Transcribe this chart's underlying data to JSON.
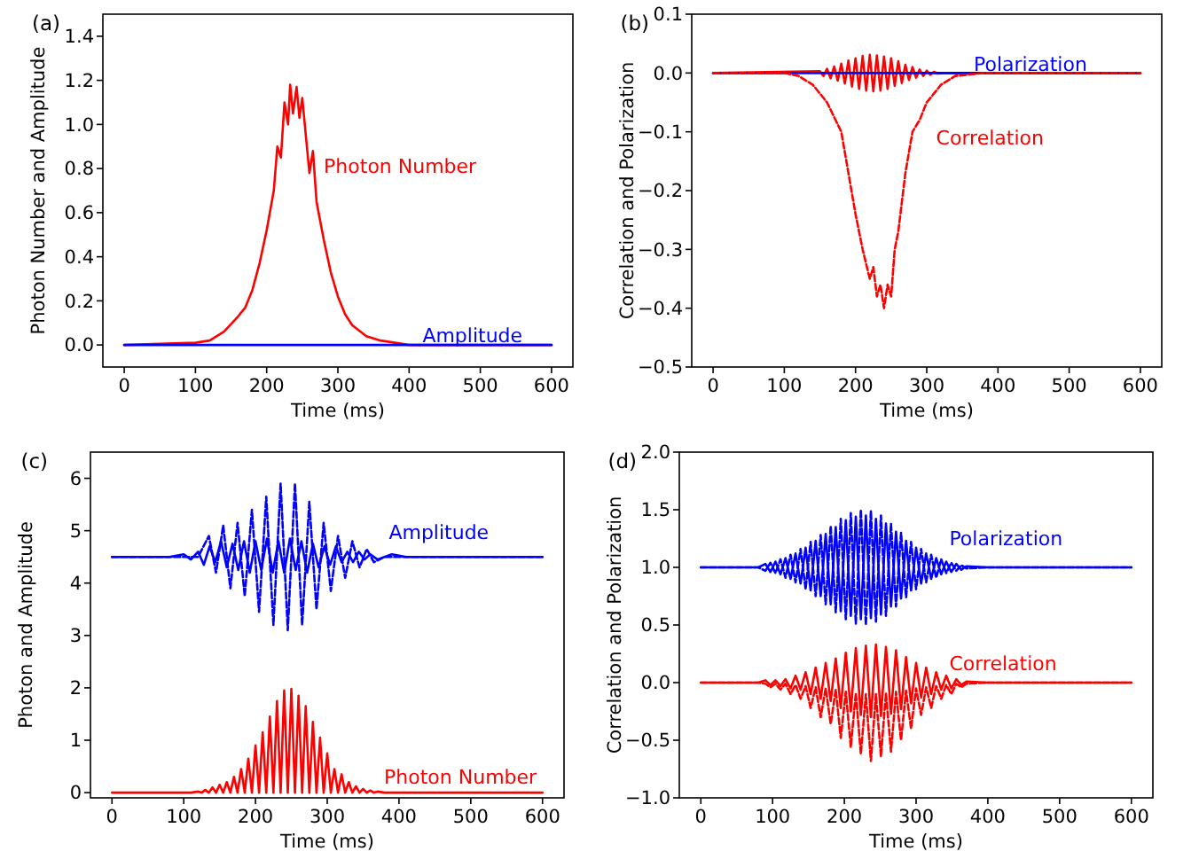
{
  "chart_data": [
    {
      "type": "line",
      "title": "(a)",
      "xlabel": "Time (ms)",
      "ylabel": "Photon Number and Amplitude",
      "xlim": [
        -30,
        630
      ],
      "xticks": [
        0,
        100,
        200,
        300,
        400,
        500,
        600
      ],
      "ylim": [
        -0.1,
        1.5
      ],
      "yticks": [
        {
          "value": 0,
          "label": "0.0"
        },
        {
          "value": 0.2,
          "label": "0.2"
        },
        {
          "value": 0.4,
          "label": "0.4"
        },
        {
          "value": 0.6,
          "label": "0.6"
        },
        {
          "value": 0.8,
          "label": "0.8"
        },
        {
          "value": 1,
          "label": "1.0"
        },
        {
          "value": 1.2,
          "label": "1.2"
        },
        {
          "value": 1.4,
          "label": "1.4"
        }
      ],
      "series": [
        {
          "name": "Photon Number",
          "color": "#ff0000",
          "line_style": "solid",
          "x": [
            0,
            100,
            120,
            140,
            160,
            170,
            180,
            190,
            200,
            210,
            215,
            220,
            225,
            230,
            233,
            237,
            242,
            246,
            250,
            255,
            260,
            265,
            270,
            280,
            290,
            300,
            310,
            320,
            340,
            360,
            380,
            400,
            600
          ],
          "values": [
            0,
            0.01,
            0.02,
            0.06,
            0.13,
            0.17,
            0.25,
            0.37,
            0.52,
            0.7,
            0.9,
            0.85,
            1.1,
            1.0,
            1.18,
            1.05,
            1.17,
            1.03,
            1.12,
            0.95,
            0.78,
            0.88,
            0.65,
            0.48,
            0.33,
            0.22,
            0.14,
            0.09,
            0.04,
            0.02,
            0.01,
            0,
            0
          ]
        },
        {
          "name": "Amplitude",
          "color": "#0000ff",
          "line_style": "solid",
          "x": [
            0,
            600
          ],
          "values": [
            0,
            0
          ]
        }
      ]
    },
    {
      "type": "line",
      "title": "(b)",
      "xlabel": "Time (ms)",
      "ylabel": "Correlation and Polarization",
      "xlim": [
        -30,
        630
      ],
      "xticks": [
        0,
        100,
        200,
        300,
        400,
        500,
        600
      ],
      "ylim": [
        -0.5,
        0.1
      ],
      "yticks": [
        {
          "value": -0.5,
          "label": "−0.5"
        },
        {
          "value": -0.4,
          "label": "−0.4"
        },
        {
          "value": -0.3,
          "label": "−0.3"
        },
        {
          "value": -0.2,
          "label": "−0.2"
        },
        {
          "value": -0.1,
          "label": "−0.1"
        },
        {
          "value": 0,
          "label": "0.0"
        },
        {
          "value": 0.1,
          "label": "0.1"
        }
      ],
      "series": [
        {
          "color": "#ff0000",
          "line_style": "solid",
          "x": [
            0,
            150,
            155,
            160,
            165,
            170,
            175,
            180,
            185,
            190,
            195,
            200,
            205,
            210,
            215,
            220,
            225,
            230,
            235,
            240,
            245,
            250,
            255,
            260,
            265,
            270,
            275,
            280,
            285,
            290,
            295,
            300,
            305,
            310,
            315,
            330,
            600
          ],
          "values": [
            0,
            0.003,
            -0.005,
            0.007,
            -0.009,
            0.011,
            -0.013,
            0.016,
            -0.018,
            0.021,
            -0.023,
            0.025,
            -0.027,
            0.029,
            -0.03,
            0.031,
            -0.031,
            0.03,
            -0.03,
            0.028,
            -0.027,
            0.025,
            -0.022,
            0.02,
            -0.017,
            0.014,
            -0.012,
            0.01,
            -0.008,
            0.006,
            -0.005,
            0.004,
            -0.003,
            0.002,
            -0.001,
            0,
            0
          ]
        },
        {
          "name": "Correlation",
          "color": "#ff0000",
          "line_style": "dashed",
          "x": [
            0,
            100,
            120,
            140,
            160,
            180,
            190,
            200,
            210,
            220,
            225,
            230,
            235,
            240,
            245,
            250,
            255,
            260,
            270,
            280,
            290,
            300,
            320,
            340,
            380,
            600
          ],
          "values": [
            0,
            0,
            -0.005,
            -0.02,
            -0.05,
            -0.1,
            -0.17,
            -0.24,
            -0.3,
            -0.35,
            -0.33,
            -0.38,
            -0.36,
            -0.4,
            -0.36,
            -0.38,
            -0.3,
            -0.27,
            -0.17,
            -0.1,
            -0.08,
            -0.05,
            -0.02,
            -0.005,
            0,
            0
          ]
        },
        {
          "name": "Polarization",
          "color": "#0000ff",
          "line_style": "solid",
          "x": [
            0,
            600
          ],
          "values": [
            0,
            0
          ]
        }
      ]
    },
    {
      "type": "line",
      "title": "(c)",
      "xlabel": "Time (ms)",
      "ylabel": "Photon and Amplitude",
      "xlim": [
        -30,
        630
      ],
      "xticks": [
        0,
        100,
        200,
        300,
        400,
        500,
        600
      ],
      "ylim": [
        -0.1,
        6.5
      ],
      "yticks": [
        0,
        1,
        2,
        3,
        4,
        5,
        6
      ],
      "series": [
        {
          "color": "#0000ff",
          "line_style": "solid",
          "x": [
            0,
            80,
            100,
            110,
            120,
            128,
            136,
            144,
            152,
            160,
            168,
            176,
            184,
            192,
            200,
            208,
            216,
            224,
            232,
            240,
            248,
            256,
            264,
            272,
            280,
            288,
            296,
            304,
            312,
            320,
            328,
            336,
            344,
            352,
            360,
            370,
            390,
            410,
            600
          ],
          "values": [
            4.5,
            4.5,
            4.55,
            4.45,
            4.6,
            4.35,
            4.7,
            4.4,
            4.8,
            4.3,
            4.75,
            4.25,
            4.8,
            4.2,
            4.8,
            4.25,
            4.85,
            4.2,
            4.8,
            4.2,
            4.85,
            4.25,
            4.8,
            4.2,
            4.75,
            4.3,
            4.7,
            4.35,
            4.7,
            4.4,
            4.6,
            4.4,
            4.6,
            4.45,
            4.55,
            4.45,
            4.55,
            4.5,
            4.5
          ]
        },
        {
          "name": "Amplitude",
          "color": "#0000ff",
          "line_style": "dashed",
          "x": [
            0,
            100,
            120,
            135,
            145,
            155,
            165,
            175,
            185,
            195,
            205,
            215,
            225,
            235,
            245,
            255,
            265,
            275,
            285,
            295,
            305,
            315,
            325,
            335,
            345,
            355,
            365,
            380,
            600
          ],
          "values": [
            4.5,
            4.5,
            4.5,
            4.9,
            4.2,
            5.1,
            3.9,
            5.15,
            3.75,
            5.4,
            3.45,
            5.65,
            3.2,
            5.9,
            3.1,
            5.9,
            3.2,
            5.55,
            3.5,
            5.15,
            3.85,
            4.9,
            4.1,
            4.8,
            4.3,
            4.65,
            4.4,
            4.5,
            4.5
          ]
        },
        {
          "name": "Photon Number",
          "color": "#ff0000",
          "line_style": "solid",
          "x": [
            0,
            110,
            120,
            125,
            130,
            135,
            140,
            145,
            150,
            155,
            160,
            165,
            170,
            175,
            180,
            185,
            190,
            195,
            200,
            205,
            210,
            215,
            220,
            225,
            230,
            235,
            240,
            245,
            250,
            255,
            260,
            265,
            270,
            275,
            280,
            285,
            290,
            295,
            300,
            305,
            310,
            315,
            320,
            325,
            330,
            335,
            340,
            345,
            350,
            355,
            360,
            365,
            370,
            380,
            600
          ],
          "values": [
            0,
            0,
            0.02,
            0,
            0.05,
            0,
            0.1,
            0,
            0.15,
            0,
            0.2,
            0,
            0.3,
            0,
            0.45,
            0,
            0.65,
            0,
            0.9,
            0,
            1.15,
            0,
            1.45,
            0,
            1.75,
            0,
            1.95,
            0,
            1.98,
            0,
            1.85,
            0,
            1.65,
            0,
            1.35,
            0,
            1.05,
            0,
            0.75,
            0,
            0.45,
            0,
            0.35,
            0,
            0.2,
            0,
            0.12,
            0,
            0.07,
            0,
            0.04,
            0,
            0.02,
            0,
            0
          ]
        }
      ]
    },
    {
      "type": "line",
      "title": "(d)",
      "xlabel": "Time (ms)",
      "ylabel": "Correlation and Polarization",
      "xlim": [
        -30,
        630
      ],
      "xticks": [
        0,
        100,
        200,
        300,
        400,
        500,
        600
      ],
      "ylim": [
        -1,
        2
      ],
      "yticks": [
        {
          "value": -1,
          "label": "−1.0"
        },
        {
          "value": -0.5,
          "label": "−0.5"
        },
        {
          "value": 0,
          "label": "0.0"
        },
        {
          "value": 0.5,
          "label": "0.5"
        },
        {
          "value": 1,
          "label": "1.0"
        },
        {
          "value": 1.5,
          "label": "1.5"
        },
        {
          "value": 2,
          "label": "2.0"
        }
      ],
      "series": [
        {
          "name": "Polarization",
          "color": "#0000ff",
          "line_style": "solid",
          "x": [
            0,
            80,
            90,
            97,
            104,
            111,
            118,
            125,
            132,
            139,
            146,
            153,
            160,
            167,
            174,
            181,
            188,
            195,
            202,
            209,
            216,
            223,
            230,
            237,
            244,
            251,
            258,
            265,
            272,
            279,
            286,
            293,
            300,
            307,
            314,
            321,
            328,
            335,
            342,
            349,
            356,
            363,
            370,
            400,
            600
          ],
          "values": [
            1,
            1,
            1.03,
            0.96,
            1.05,
            0.94,
            1.08,
            0.9,
            1.12,
            0.86,
            1.17,
            0.8,
            1.23,
            0.75,
            1.29,
            0.68,
            1.35,
            0.62,
            1.41,
            0.58,
            1.44,
            0.55,
            1.45,
            0.56,
            1.42,
            0.59,
            1.38,
            0.66,
            1.31,
            0.73,
            1.23,
            0.8,
            1.17,
            0.86,
            1.12,
            0.9,
            1.08,
            0.94,
            1.05,
            0.96,
            1.03,
            0.98,
            1.01,
            1,
            1
          ]
        },
        {
          "color": "#0000ff",
          "line_style": "dashed",
          "x": [
            0,
            80,
            90,
            97,
            104,
            111,
            118,
            125,
            132,
            139,
            146,
            153,
            160,
            167,
            174,
            181,
            188,
            195,
            202,
            209,
            216,
            223,
            230,
            237,
            244,
            251,
            258,
            265,
            272,
            279,
            286,
            293,
            300,
            307,
            314,
            321,
            328,
            335,
            342,
            349,
            356,
            363,
            370,
            400,
            600
          ],
          "values": [
            1,
            1,
            0.97,
            1.04,
            0.95,
            1.07,
            0.91,
            1.11,
            0.87,
            1.16,
            0.81,
            1.22,
            0.75,
            1.28,
            0.68,
            1.36,
            0.61,
            1.42,
            0.55,
            1.47,
            0.51,
            1.5,
            0.5,
            1.49,
            0.53,
            1.45,
            0.58,
            1.38,
            0.66,
            1.3,
            0.74,
            1.22,
            0.81,
            1.16,
            0.87,
            1.11,
            0.91,
            1.07,
            0.95,
            1.04,
            0.97,
            1.02,
            0.99,
            1,
            1
          ]
        },
        {
          "name": "Correlation",
          "color": "#ff0000",
          "line_style": "solid",
          "x": [
            0,
            80,
            90,
            97,
            104,
            111,
            118,
            125,
            132,
            139,
            146,
            153,
            160,
            167,
            174,
            181,
            188,
            195,
            202,
            209,
            216,
            223,
            230,
            237,
            244,
            251,
            258,
            265,
            272,
            279,
            286,
            293,
            300,
            307,
            314,
            321,
            328,
            335,
            342,
            349,
            356,
            363,
            370,
            400,
            600
          ],
          "values": [
            0,
            0,
            0.02,
            -0.02,
            0.02,
            -0.03,
            0.03,
            -0.05,
            0.06,
            -0.06,
            0.09,
            -0.1,
            0.13,
            -0.14,
            0.17,
            -0.16,
            0.21,
            -0.22,
            0.26,
            -0.25,
            0.3,
            -0.28,
            0.32,
            -0.3,
            0.33,
            -0.29,
            0.31,
            -0.27,
            0.28,
            -0.23,
            0.22,
            -0.18,
            0.17,
            -0.13,
            0.13,
            -0.1,
            0.09,
            -0.06,
            0.06,
            -0.05,
            0.03,
            -0.02,
            0.01,
            0,
            0
          ]
        },
        {
          "color": "#ff0000",
          "line_style": "dashed",
          "x": [
            0,
            80,
            90,
            97,
            104,
            111,
            118,
            125,
            132,
            139,
            146,
            153,
            160,
            167,
            174,
            181,
            188,
            195,
            202,
            209,
            216,
            223,
            230,
            237,
            244,
            251,
            258,
            265,
            272,
            279,
            286,
            293,
            300,
            307,
            314,
            321,
            328,
            335,
            342,
            349,
            356,
            363,
            370,
            400,
            600
          ],
          "values": [
            0,
            0,
            -0.01,
            -0.04,
            -0.01,
            -0.06,
            -0.01,
            -0.1,
            -0.02,
            -0.14,
            -0.03,
            -0.22,
            -0.04,
            -0.3,
            -0.05,
            -0.36,
            -0.06,
            -0.48,
            -0.08,
            -0.56,
            -0.09,
            -0.62,
            -0.1,
            -0.68,
            -0.1,
            -0.64,
            -0.09,
            -0.6,
            -0.08,
            -0.5,
            -0.07,
            -0.4,
            -0.05,
            -0.28,
            -0.04,
            -0.22,
            -0.03,
            -0.14,
            -0.02,
            -0.1,
            -0.01,
            -0.04,
            -0.01,
            0,
            0
          ]
        }
      ]
    }
  ]
}
